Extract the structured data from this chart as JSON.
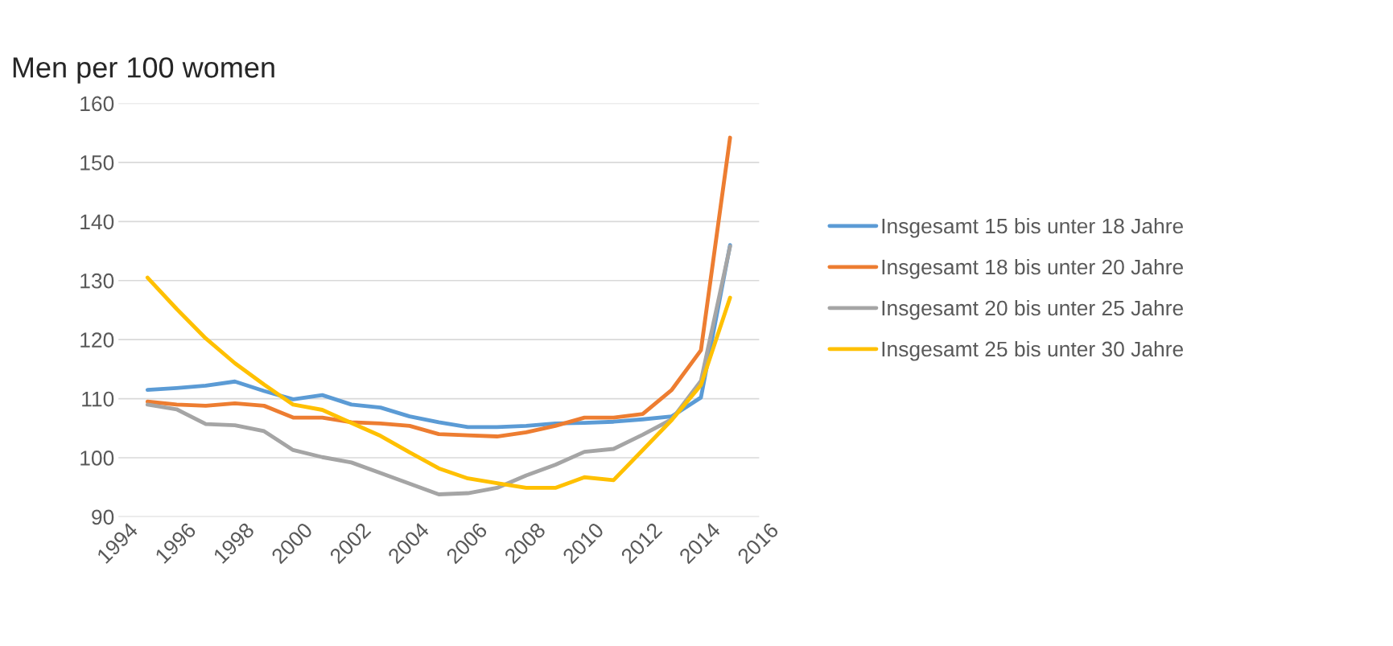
{
  "chart_data": {
    "type": "line",
    "title": "Men per 100 women",
    "x": [
      1995,
      1996,
      1997,
      1998,
      1999,
      2000,
      2001,
      2002,
      2003,
      2004,
      2005,
      2006,
      2007,
      2008,
      2009,
      2010,
      2011,
      2012,
      2013,
      2014,
      2015
    ],
    "series": [
      {
        "name": "Insgesamt 15 bis unter 18 Jahre",
        "color": "#5b9bd5",
        "values": [
          111.5,
          111.8,
          112.2,
          112.9,
          111.3,
          109.9,
          110.6,
          109,
          108.5,
          107,
          106,
          105.2,
          105.2,
          105.4,
          105.8,
          105.9,
          106.1,
          106.5,
          107,
          110.2,
          136
        ]
      },
      {
        "name": "Insgesamt 18 bis unter 20 Jahre",
        "color": "#ed7d31",
        "values": [
          109.5,
          109,
          108.8,
          109.2,
          108.8,
          106.8,
          106.8,
          106,
          105.8,
          105.4,
          104,
          103.8,
          103.6,
          104.3,
          105.4,
          106.8,
          106.8,
          107.4,
          111.5,
          118.2,
          154.2
        ]
      },
      {
        "name": "Insgesamt 20 bis unter 25 Jahre",
        "color": "#a5a5a5",
        "values": [
          109,
          108.2,
          105.7,
          105.5,
          104.5,
          101.3,
          100.1,
          99.2,
          97.4,
          95.6,
          93.8,
          94,
          94.9,
          97,
          98.8,
          101,
          101.5,
          103.9,
          106.5,
          113,
          135.8
        ]
      },
      {
        "name": "Insgesamt 25 bis unter 30 Jahre",
        "color": "#ffc000",
        "values": [
          130.5,
          125.2,
          120.2,
          116,
          112.4,
          109,
          108.1,
          105.9,
          103.7,
          100.9,
          98.2,
          96.5,
          95.7,
          94.9,
          94.9,
          96.7,
          96.2,
          101.3,
          106.4,
          112.3,
          127.1
        ]
      }
    ],
    "xlim": [
      1994,
      2016
    ],
    "xticks": [
      1994,
      1996,
      1998,
      2000,
      2002,
      2004,
      2006,
      2008,
      2010,
      2012,
      2014,
      2016
    ],
    "ylim": [
      90,
      160
    ],
    "yticks": [
      90,
      100,
      110,
      120,
      130,
      140,
      150,
      160
    ],
    "grid": "y",
    "legend": "right",
    "marker": "none",
    "line_style": "solid"
  }
}
